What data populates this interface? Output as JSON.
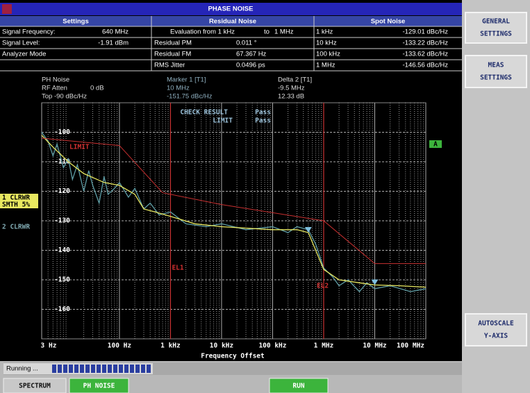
{
  "header": {
    "title": "PHASE NOISE"
  },
  "table": {
    "headers": [
      "Settings",
      "Residual Noise",
      "Spot Noise"
    ],
    "rows": [
      {
        "settings": [
          "Signal Frequency:",
          "640 MHz"
        ],
        "residual": [
          "Evaluation from 1 kHz",
          "to",
          "1 MHz"
        ],
        "spot": [
          "1 kHz",
          "-129.01 dBc/Hz"
        ]
      },
      {
        "settings": [
          "Signal Level:",
          "-1.91 dBm"
        ],
        "residual": [
          "Residual PM",
          "0.011 °"
        ],
        "spot": [
          "10 kHz",
          "-133.22 dBc/Hz"
        ]
      },
      {
        "settings": [
          "Analyzer Mode"
        ],
        "residual": [
          "Residual FM",
          "67.367 Hz"
        ],
        "spot": [
          "100 kHz",
          "-133.62 dBc/Hz"
        ]
      },
      {
        "settings": [],
        "residual": [
          "RMS Jitter",
          "0.0496 ps"
        ],
        "spot": [
          "1 MHz",
          "-146.56 dBc/Hz"
        ]
      }
    ]
  },
  "info": {
    "left": [
      [
        "PH Noise"
      ],
      [
        "RF Atten",
        "0 dB"
      ],
      [
        "Top -90 dBc/Hz"
      ]
    ],
    "marker": [
      "Marker 1 [T1]",
      "10 MHz",
      "-151.75 dBc/Hz"
    ],
    "delta": [
      "Delta 2 [T1]",
      "-9.5 MHz",
      "12.33 dB"
    ]
  },
  "chart_data": {
    "type": "line",
    "xlabel": "Frequency Offset",
    "xscale": "log",
    "grid": true,
    "xlim": [
      3,
      100000000
    ],
    "xticks": [
      {
        "value": 3,
        "label": "3 Hz"
      },
      {
        "value": 100,
        "label": "100 Hz"
      },
      {
        "value": 1000,
        "label": "1 kHz"
      },
      {
        "value": 10000,
        "label": "10 kHz"
      },
      {
        "value": 100000,
        "label": "100 kHz"
      },
      {
        "value": 1000000,
        "label": "1 MHz"
      },
      {
        "value": 10000000,
        "label": "10 MHz"
      },
      {
        "value": 100000000,
        "label": "100 MHz"
      }
    ],
    "ylim": [
      -170,
      -90
    ],
    "yticks": [
      -160,
      -150,
      -140,
      -130,
      -120,
      -110,
      -100
    ],
    "x": [
      3,
      5,
      10,
      20,
      50,
      100,
      200,
      300,
      500,
      1000,
      3000,
      10000,
      100000,
      300000,
      500000,
      1000000,
      2000000,
      5000000,
      10000000,
      30000000,
      100000000
    ],
    "series": [
      {
        "name": "1 CLRWR",
        "note": "SMTH 5%",
        "color": "#e8e860",
        "values": [
          -101,
          -105,
          -110,
          -114,
          -117,
          -118,
          -121,
          -126,
          -127,
          -128.5,
          -131,
          -132,
          -133,
          -133,
          -134,
          -146.5,
          -150,
          -151,
          -151.75,
          -152,
          -152.5
        ]
      },
      {
        "name": "2 CLRWR",
        "color": "#5f9ea6",
        "x": [
          3,
          4,
          5,
          6,
          8,
          10,
          12,
          15,
          20,
          25,
          30,
          40,
          50,
          60,
          80,
          100,
          150,
          200,
          300,
          400,
          600,
          1000,
          2000,
          5000,
          10000,
          30000,
          100000,
          200000,
          300000,
          500000,
          700000,
          1000000,
          1500000,
          2000000,
          3000000,
          5000000,
          7000000,
          10000000,
          20000000,
          50000000,
          100000000
        ],
        "values": [
          -100,
          -103,
          -108,
          -104,
          -112,
          -109,
          -116,
          -111,
          -120,
          -113,
          -118,
          -124,
          -115,
          -121,
          -119,
          -117,
          -122,
          -119,
          -126,
          -124,
          -128,
          -127,
          -131,
          -132,
          -131,
          -133,
          -132,
          -134,
          -132,
          -133,
          -138,
          -146,
          -149,
          -152,
          -150,
          -154,
          -151,
          -153,
          -152,
          -154,
          -153
        ]
      },
      {
        "name": "LIMIT",
        "color": "#c83030",
        "x": [
          3,
          100,
          700,
          10000,
          1000000,
          10000000,
          100000000
        ],
        "values": [
          -102,
          -104.5,
          -120.5,
          -124.5,
          -130,
          -144.5,
          -144.5
        ]
      }
    ],
    "eval_lines": [
      {
        "label": "EL1",
        "x": 1000
      },
      {
        "label": "EL2",
        "x": 1000000
      }
    ],
    "check": [
      "CHECK RESULT",
      "Pass",
      "LIMIT",
      "Pass"
    ],
    "limit_tag": "A"
  },
  "softkeys": [
    [
      "GENERAL",
      "SETTINGS"
    ],
    [
      "MEAS",
      "SETTINGS"
    ],
    [
      "AUTOSCALE",
      "Y-AXIS"
    ]
  ],
  "status": "Running ...",
  "tabs": [
    "SPECTRUM",
    "PH NOISE",
    "RUN"
  ]
}
